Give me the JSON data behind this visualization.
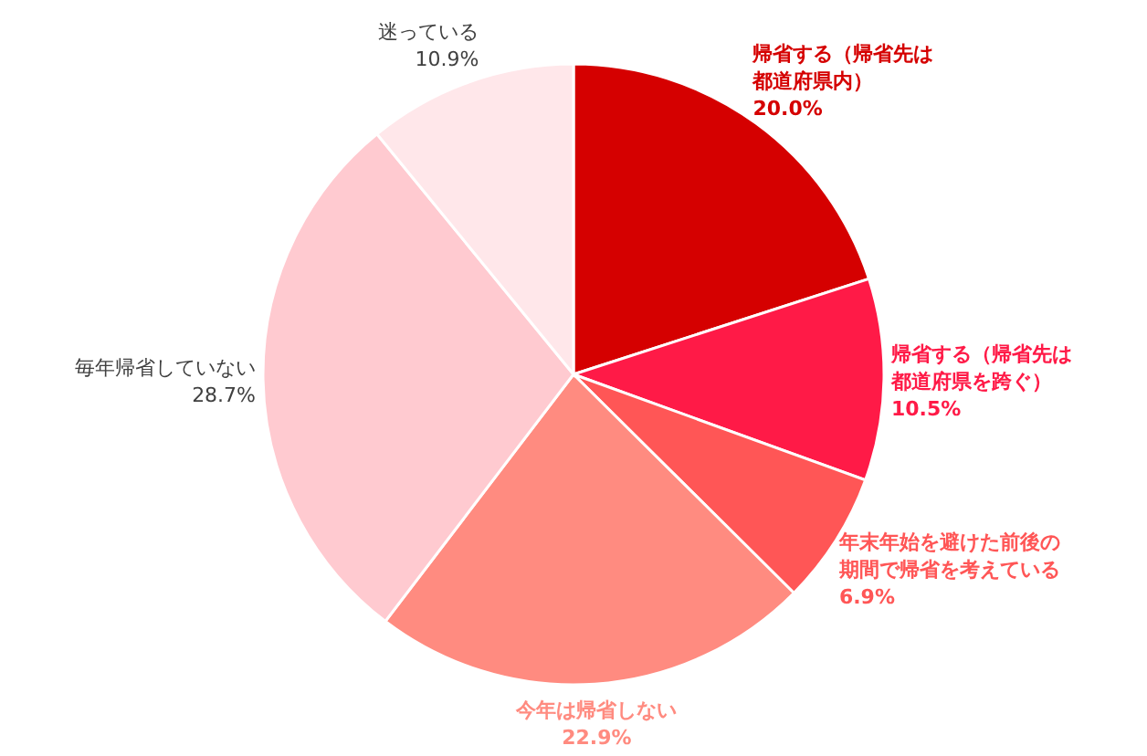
{
  "chart_data": {
    "type": "pie",
    "categories": [
      "帰省する（帰省先は都道府県内）",
      "帰省する（帰省先は都道府県を跨ぐ）",
      "年末年始を避けた前後の期間で帰省を考えている",
      "今年は帰省しない",
      "毎年帰省していない",
      "迷っている"
    ],
    "values": [
      20.0,
      10.5,
      6.9,
      22.9,
      28.7,
      10.9
    ],
    "colors": [
      "#d50000",
      "#ff1a47",
      "#ff5656",
      "#ff8b80",
      "#ffcad0",
      "#ffe7ea"
    ],
    "value_labels": [
      "20.0%",
      "10.5%",
      "6.9%",
      "22.9%",
      "28.7%",
      "10.9%"
    ]
  }
}
